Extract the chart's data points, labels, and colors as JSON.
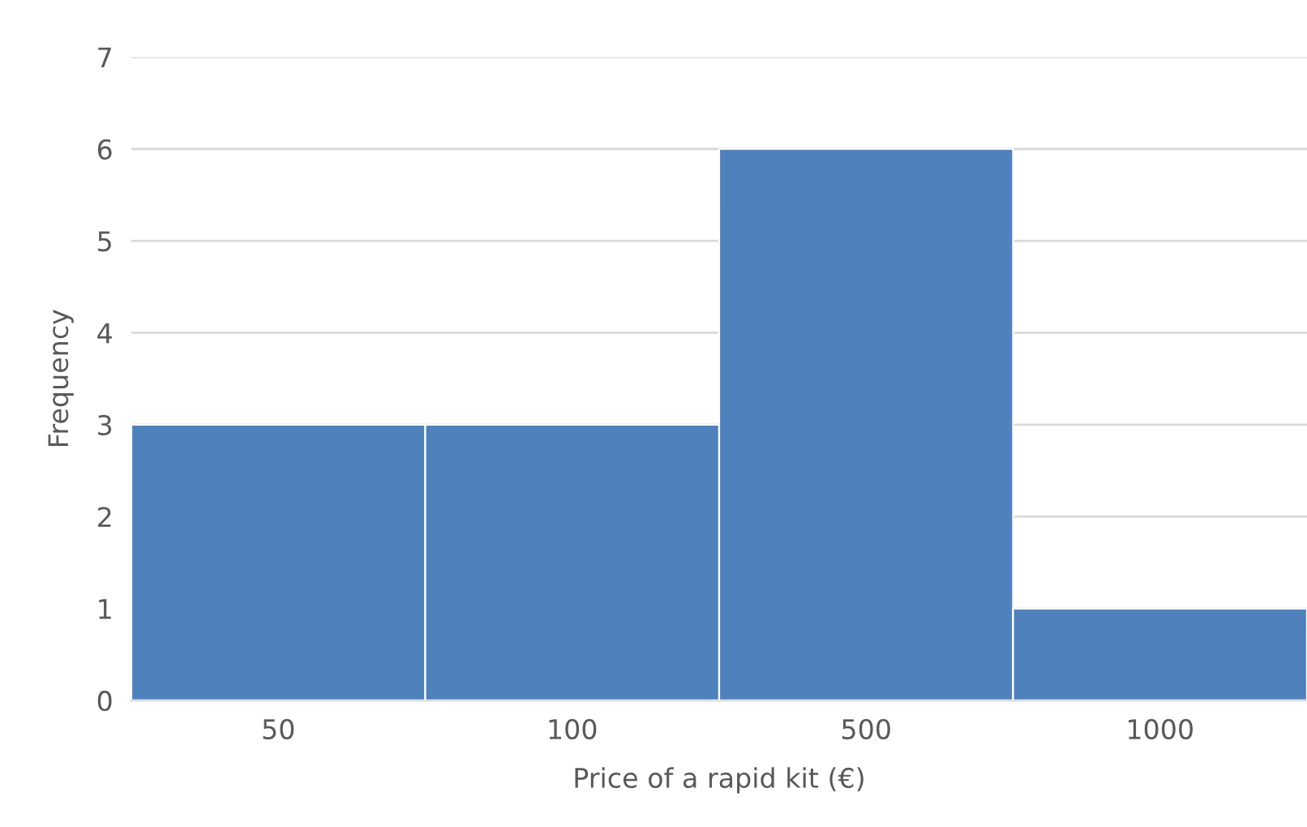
{
  "chart_data": {
    "type": "bar",
    "xlabel": "Price of a rapid kit (€)",
    "ylabel": "Frequency",
    "categories": [
      "50",
      "100",
      "500",
      "1000"
    ],
    "values": [
      3,
      3,
      6,
      1
    ],
    "color": "#4f81bd",
    "ylim": [
      0,
      7
    ],
    "yticks": [
      0,
      1,
      2,
      3,
      4,
      5,
      6,
      7
    ],
    "grid": "y",
    "legend": false
  }
}
